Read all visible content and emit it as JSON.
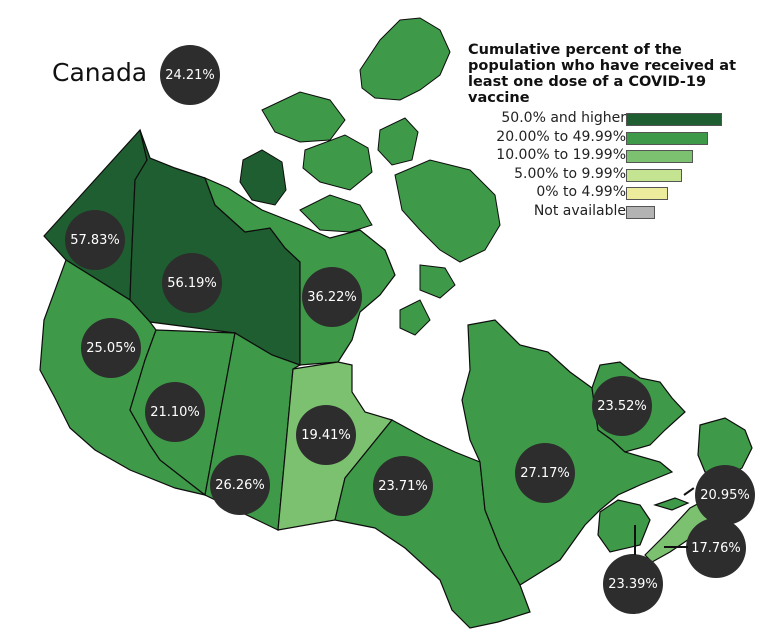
{
  "map": {
    "title": "Canada",
    "national_value": "24.21%",
    "colors": {
      "high": "#1f5e30",
      "mid": "#3e9a48",
      "low": "#7cc16f",
      "lower": "#c4e491",
      "lowest": "#ecec9c",
      "na": "#b3b3b3",
      "border": "#0d0d0d",
      "badge": "#2d2d2d"
    },
    "regions": [
      {
        "name": "Yukon",
        "value": "57.83%",
        "band": "50.0% and higher"
      },
      {
        "name": "Northwest Territories",
        "value": "56.19%",
        "band": "50.0% and higher"
      },
      {
        "name": "Nunavut",
        "value": "36.22%",
        "band": "20.00% to 49.99%"
      },
      {
        "name": "British Columbia",
        "value": "25.05%",
        "band": "20.00% to 49.99%"
      },
      {
        "name": "Alberta",
        "value": "21.10%",
        "band": "20.00% to 49.99%"
      },
      {
        "name": "Saskatchewan",
        "value": "26.26%",
        "band": "20.00% to 49.99%"
      },
      {
        "name": "Manitoba",
        "value": "19.41%",
        "band": "10.00% to 19.99%"
      },
      {
        "name": "Ontario",
        "value": "23.71%",
        "band": "20.00% to 49.99%"
      },
      {
        "name": "Quebec",
        "value": "27.17%",
        "band": "20.00% to 49.99%"
      },
      {
        "name": "Newfoundland and Labrador",
        "value": "23.52%",
        "band": "20.00% to 49.99%"
      },
      {
        "name": "Prince Edward Island",
        "value": "20.95%",
        "band": "20.00% to 49.99%"
      },
      {
        "name": "Nova Scotia",
        "value": "17.76%",
        "band": "10.00% to 19.99%"
      },
      {
        "name": "New Brunswick",
        "value": "23.39%",
        "band": "20.00% to 49.99%"
      }
    ]
  },
  "legend": {
    "title_lines": [
      "Cumulative percent of the",
      "population who have received at",
      "least one dose of a COVID-19 vaccine"
    ],
    "items": [
      {
        "label": "50.0% and higher",
        "color": "#1f5e30",
        "bar": 1.0
      },
      {
        "label": "20.00% to 49.99%",
        "color": "#3e9a48",
        "bar": 0.85
      },
      {
        "label": "10.00% to 19.99%",
        "color": "#7cc16f",
        "bar": 0.7
      },
      {
        "label": "5.00% to 9.99%",
        "color": "#c4e491",
        "bar": 0.58
      },
      {
        "label": "0% to 4.99%",
        "color": "#ecec9c",
        "bar": 0.44
      },
      {
        "label": "Not available",
        "color": "#b3b3b3",
        "bar": 0.3
      }
    ]
  }
}
